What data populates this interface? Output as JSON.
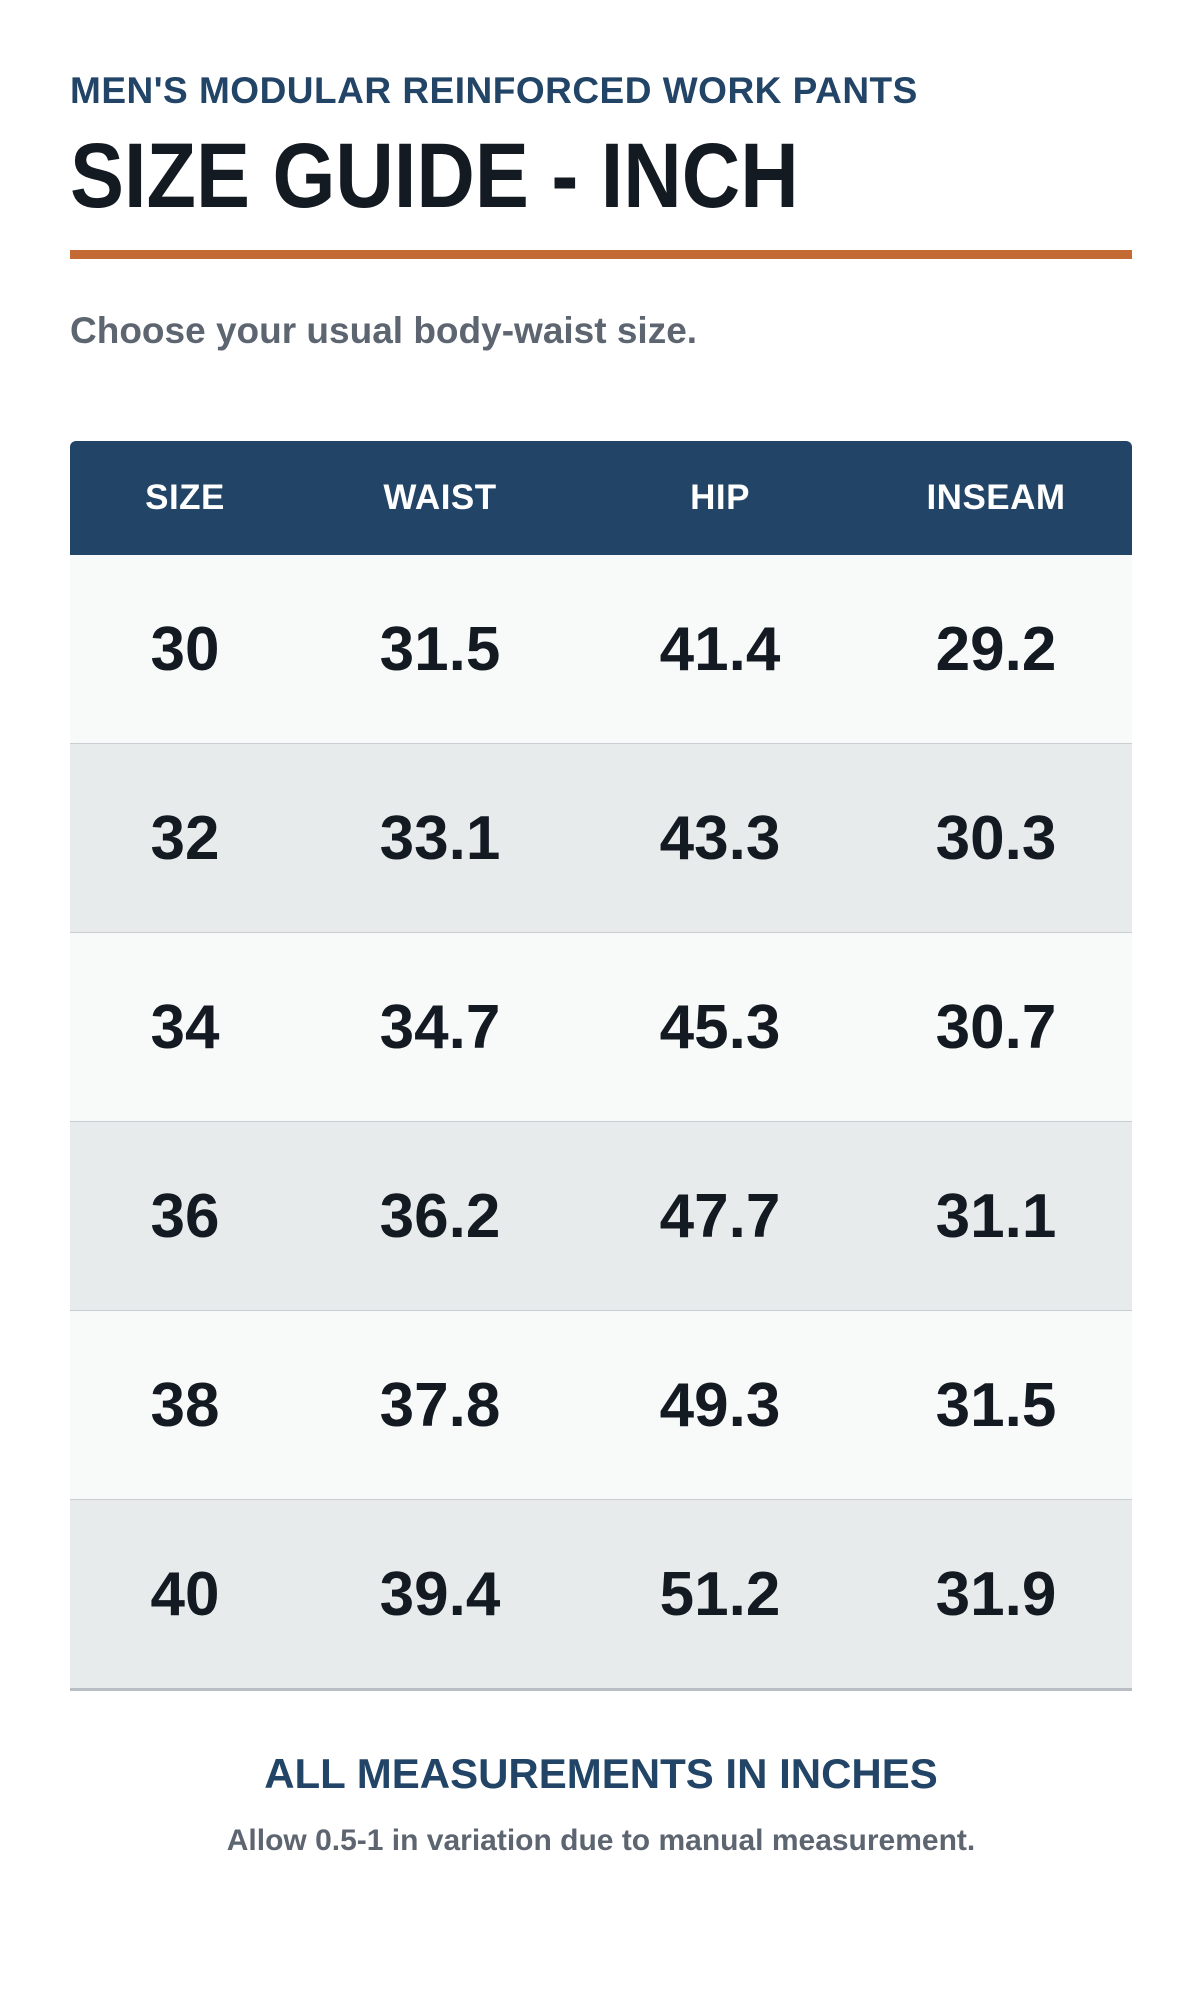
{
  "header": {
    "eyebrow": "MEN'S MODULAR REINFORCED WORK PANTS",
    "title": "SIZE GUIDE - INCH",
    "subtitle": "Choose your usual body-waist size."
  },
  "table": {
    "columns": [
      "SIZE",
      "WAIST",
      "HIP",
      "INSEAM"
    ],
    "rows": [
      [
        "30",
        "31.5",
        "41.4",
        "29.2"
      ],
      [
        "32",
        "33.1",
        "43.3",
        "30.3"
      ],
      [
        "34",
        "34.7",
        "45.3",
        "30.7"
      ],
      [
        "36",
        "36.2",
        "47.7",
        "31.1"
      ],
      [
        "38",
        "37.8",
        "49.3",
        "31.5"
      ],
      [
        "40",
        "39.4",
        "51.2",
        "31.9"
      ]
    ]
  },
  "footer": {
    "title": "ALL MEASUREMENTS IN INCHES",
    "note": "Allow 0.5-1 in variation due to manual measurement."
  },
  "colors": {
    "header_navy": "#224466",
    "accent_rule": "#c46a35",
    "row_light": "#f8f9f9",
    "row_shaded": "#e8ebec"
  }
}
